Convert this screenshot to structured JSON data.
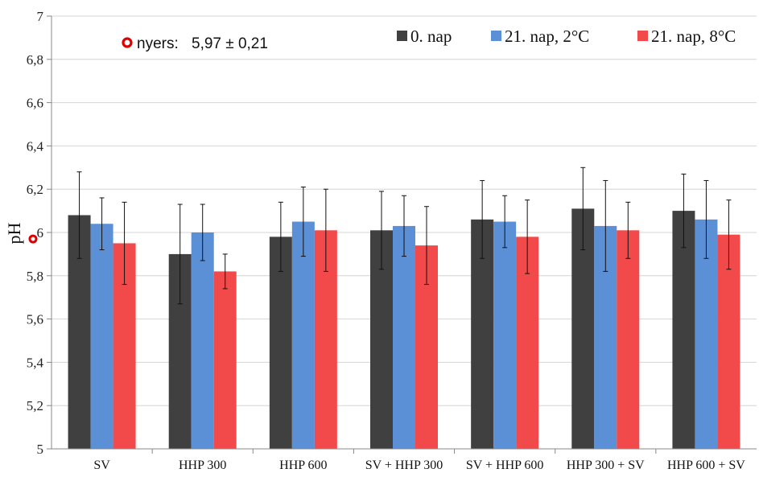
{
  "chart_data": {
    "type": "bar",
    "ylabel": "pH",
    "xlabel": "",
    "ylim": [
      5,
      7
    ],
    "yticks": [
      "5",
      "5,2",
      "5,4",
      "5,6",
      "5,8",
      "6",
      "6,2",
      "6,4",
      "6,6",
      "6,8",
      "7"
    ],
    "grid": true,
    "legend_position": "top-right",
    "categories": [
      "SV",
      "HHP 300",
      "HHP 600",
      "SV + HHP 300",
      "SV + HHP 600",
      "HHP 300 + SV",
      "HHP 600 + SV"
    ],
    "series": [
      {
        "name": "0. nap",
        "color": "#404040",
        "values": [
          6.08,
          5.9,
          5.98,
          6.01,
          6.06,
          6.11,
          6.1
        ],
        "errors": [
          0.2,
          0.23,
          0.16,
          0.18,
          0.18,
          0.19,
          0.17
        ]
      },
      {
        "name": "21. nap, 2°C",
        "color": "#5b8fd6",
        "values": [
          6.04,
          6.0,
          6.05,
          6.03,
          6.05,
          6.03,
          6.06
        ],
        "errors": [
          0.12,
          0.13,
          0.16,
          0.14,
          0.12,
          0.21,
          0.18
        ]
      },
      {
        "name": "21. nap, 8°C",
        "color": "#f24a4a",
        "values": [
          5.95,
          5.82,
          6.01,
          5.94,
          5.98,
          6.01,
          5.99
        ],
        "errors": [
          0.19,
          0.08,
          0.19,
          0.18,
          0.17,
          0.13,
          0.16
        ]
      }
    ],
    "annotation": {
      "marker": "circle",
      "marker_color": "#dd0000",
      "label": "nyers:",
      "value_text": "5,97 ± 0,21",
      "value": 5.97
    }
  }
}
